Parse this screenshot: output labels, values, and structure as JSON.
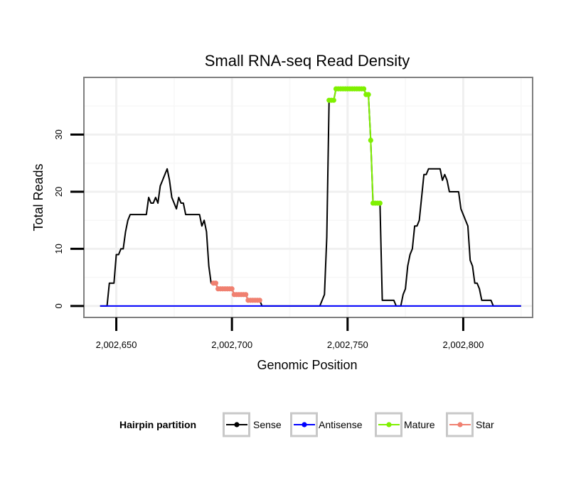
{
  "chart_data": {
    "type": "line",
    "title": "Small RNA-seq Read Density",
    "xlabel": "Genomic Position",
    "ylabel": "Total Reads",
    "xlim": [
      2002636,
      2002830
    ],
    "ylim": [
      -2,
      40
    ],
    "x_ticks": [
      2002650,
      2002700,
      2002750,
      2002800
    ],
    "x_tick_labels": [
      "2,002,650",
      "2,002,700",
      "2,002,750",
      "2,002,800"
    ],
    "y_ticks": [
      0,
      10,
      20,
      30
    ],
    "y_tick_labels": [
      "0",
      "10",
      "20",
      "30"
    ],
    "grid": true,
    "legend": {
      "title": "Hairpin partition",
      "placement": "bottom",
      "entries": [
        "Sense",
        "Antisense",
        "Mature",
        "Star"
      ]
    },
    "series": [
      {
        "name": "Sense",
        "color": "#000000",
        "points": [
          [
            2002643,
            0
          ],
          [
            2002646,
            0
          ],
          [
            2002647,
            4
          ],
          [
            2002649,
            4
          ],
          [
            2002650,
            9
          ],
          [
            2002651,
            9
          ],
          [
            2002652,
            10
          ],
          [
            2002653,
            10
          ],
          [
            2002654,
            13
          ],
          [
            2002655,
            15
          ],
          [
            2002656,
            16
          ],
          [
            2002663,
            16
          ],
          [
            2002664,
            19
          ],
          [
            2002665,
            18
          ],
          [
            2002666,
            18
          ],
          [
            2002667,
            19
          ],
          [
            2002668,
            18
          ],
          [
            2002669,
            21
          ],
          [
            2002670,
            22
          ],
          [
            2002671,
            23
          ],
          [
            2002672,
            24
          ],
          [
            2002673,
            22
          ],
          [
            2002674,
            19
          ],
          [
            2002675,
            18
          ],
          [
            2002676,
            17
          ],
          [
            2002677,
            19
          ],
          [
            2002678,
            18
          ],
          [
            2002679,
            18
          ],
          [
            2002680,
            16
          ],
          [
            2002686,
            16
          ],
          [
            2002687,
            14
          ],
          [
            2002688,
            15
          ],
          [
            2002689,
            13
          ],
          [
            2002690,
            7
          ],
          [
            2002691,
            4
          ],
          [
            2002692,
            4
          ],
          [
            2002693,
            4
          ],
          [
            2002694,
            3
          ],
          [
            2002700,
            3
          ],
          [
            2002701,
            2
          ],
          [
            2002706,
            2
          ],
          [
            2002707,
            1
          ],
          [
            2002712,
            1
          ],
          [
            2002713,
            0
          ],
          [
            2002738,
            0
          ],
          [
            2002740,
            2
          ],
          [
            2002741,
            12
          ],
          [
            2002742,
            36
          ],
          [
            2002744,
            36
          ],
          [
            2002745,
            38
          ],
          [
            2002757,
            38
          ],
          [
            2002758,
            37
          ],
          [
            2002759,
            37
          ],
          [
            2002760,
            29
          ],
          [
            2002761,
            18
          ],
          [
            2002764,
            18
          ],
          [
            2002765,
            1
          ],
          [
            2002770,
            1
          ],
          [
            2002771,
            0
          ],
          [
            2002773,
            0
          ],
          [
            2002774,
            2
          ],
          [
            2002775,
            3
          ],
          [
            2002776,
            7
          ],
          [
            2002777,
            9
          ],
          [
            2002778,
            10
          ],
          [
            2002779,
            14
          ],
          [
            2002780,
            14
          ],
          [
            2002781,
            15
          ],
          [
            2002782,
            19
          ],
          [
            2002783,
            23
          ],
          [
            2002784,
            23
          ],
          [
            2002785,
            24
          ],
          [
            2002790,
            24
          ],
          [
            2002791,
            22
          ],
          [
            2002792,
            23
          ],
          [
            2002793,
            22
          ],
          [
            2002794,
            20
          ],
          [
            2002798,
            20
          ],
          [
            2002799,
            17
          ],
          [
            2002800,
            16
          ],
          [
            2002801,
            15
          ],
          [
            2002802,
            14
          ],
          [
            2002803,
            8
          ],
          [
            2002804,
            7
          ],
          [
            2002805,
            4
          ],
          [
            2002806,
            4
          ],
          [
            2002807,
            3
          ],
          [
            2002808,
            1
          ],
          [
            2002812,
            1
          ],
          [
            2002813,
            0
          ],
          [
            2002825,
            0
          ]
        ]
      },
      {
        "name": "Antisense",
        "color": "#0000ff",
        "points": [
          [
            2002643,
            0
          ],
          [
            2002825,
            0
          ]
        ]
      },
      {
        "name": "Mature",
        "color": "#7ff000",
        "points": [
          [
            2002742,
            36
          ],
          [
            2002743,
            36
          ],
          [
            2002744,
            36
          ],
          [
            2002745,
            38
          ],
          [
            2002746,
            38
          ],
          [
            2002747,
            38
          ],
          [
            2002748,
            38
          ],
          [
            2002749,
            38
          ],
          [
            2002750,
            38
          ],
          [
            2002751,
            38
          ],
          [
            2002752,
            38
          ],
          [
            2002753,
            38
          ],
          [
            2002754,
            38
          ],
          [
            2002755,
            38
          ],
          [
            2002756,
            38
          ],
          [
            2002757,
            38
          ],
          [
            2002758,
            37
          ],
          [
            2002759,
            37
          ],
          [
            2002760,
            29
          ],
          [
            2002761,
            18
          ],
          [
            2002762,
            18
          ],
          [
            2002763,
            18
          ],
          [
            2002764,
            18
          ]
        ]
      },
      {
        "name": "Star",
        "color": "#f08070",
        "points": [
          [
            2002692,
            4
          ],
          [
            2002693,
            4
          ],
          [
            2002694,
            3
          ],
          [
            2002695,
            3
          ],
          [
            2002696,
            3
          ],
          [
            2002697,
            3
          ],
          [
            2002698,
            3
          ],
          [
            2002699,
            3
          ],
          [
            2002700,
            3
          ],
          [
            2002701,
            2
          ],
          [
            2002702,
            2
          ],
          [
            2002703,
            2
          ],
          [
            2002704,
            2
          ],
          [
            2002705,
            2
          ],
          [
            2002706,
            2
          ],
          [
            2002707,
            1
          ],
          [
            2002708,
            1
          ],
          [
            2002709,
            1
          ],
          [
            2002710,
            1
          ],
          [
            2002711,
            1
          ],
          [
            2002712,
            1
          ]
        ]
      }
    ]
  }
}
